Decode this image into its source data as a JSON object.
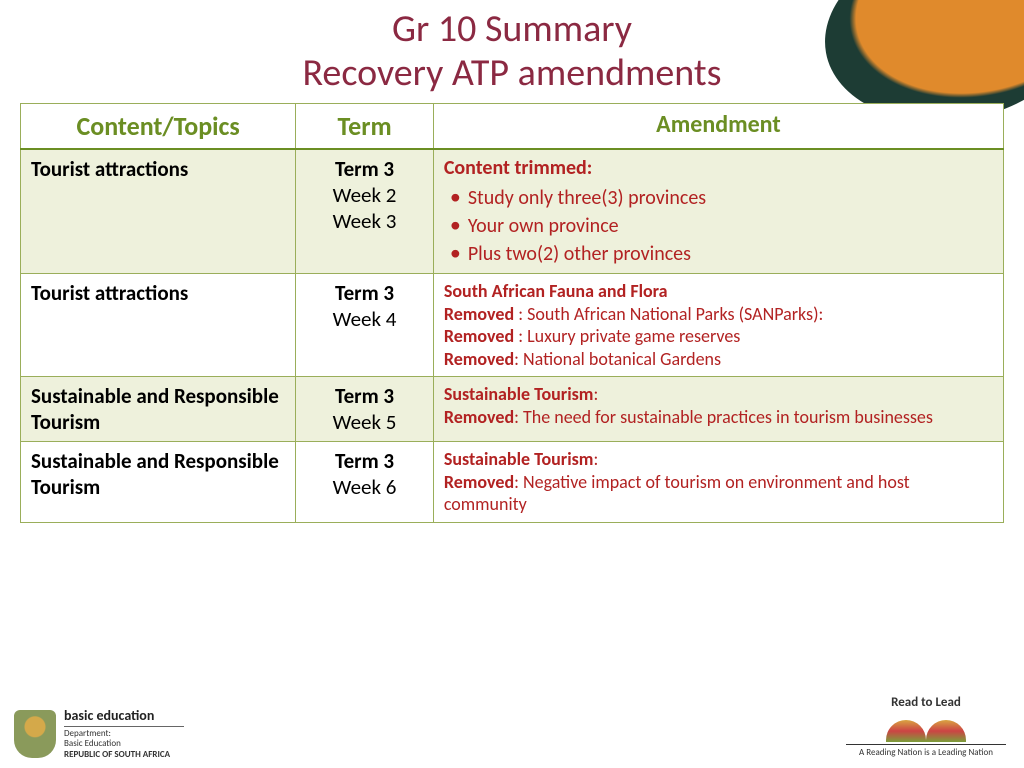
{
  "title_line1": "Gr 10 Summary",
  "title_line2": "Recovery ATP amendments",
  "columns": [
    "Content/Topics",
    "Term",
    "Amendment"
  ],
  "rows": [
    {
      "content": "Tourist attractions",
      "term_bold": "Term 3",
      "weeks": [
        "Week 2",
        "Week 3"
      ],
      "amend_lead": "Content trimmed:",
      "amend_bullets": [
        "Study only three(3) provinces",
        "Your own province",
        "Plus two(2) other provinces"
      ]
    },
    {
      "content": "Tourist attractions",
      "term_bold": "Term 3",
      "weeks": [
        "Week 4"
      ],
      "amend_lines": [
        {
          "bold": "South African Fauna and Flora",
          "rest": ""
        },
        {
          "bold": "Removed ",
          "rest": ": South African National Parks (SANParks):"
        },
        {
          "bold": "Removed ",
          "rest": ": Luxury private game reserves"
        },
        {
          "bold": "Removed",
          "rest": ": National botanical Gardens"
        }
      ]
    },
    {
      "content": "Sustainable and Responsible Tourism",
      "term_bold": "Term 3",
      "weeks": [
        "Week 5"
      ],
      "amend_lines": [
        {
          "bold": "Sustainable Tourism",
          "rest": ":"
        },
        {
          "bold": "Removed",
          "rest": ": The need for sustainable practices in tourism businesses"
        }
      ]
    },
    {
      "content": "Sustainable and Responsible Tourism",
      "term_bold": "Term 3",
      "weeks": [
        "Week 6"
      ],
      "amend_lines": [
        {
          "bold": "Sustainable Tourism",
          "rest": ":"
        },
        {
          "bold": "Removed",
          "rest": ": Negative impact of tourism on environment and host community"
        }
      ]
    }
  ],
  "footer_left": {
    "l1": "basic education",
    "l2": "Department:\nBasic Education",
    "l3": "REPUBLIC OF SOUTH AFRICA"
  },
  "footer_right": {
    "title": "Read to Lead",
    "sub": "A Reading Nation is a Leading Nation"
  },
  "colors": {
    "title": "#8b2942",
    "header_text": "#6b8e23",
    "border": "#9aae5a",
    "alt_row_bg": "#eef1dc",
    "amend_text": "#b22222",
    "wave_dark": "#1d3c34",
    "wave_orange": "#e08a2c"
  }
}
